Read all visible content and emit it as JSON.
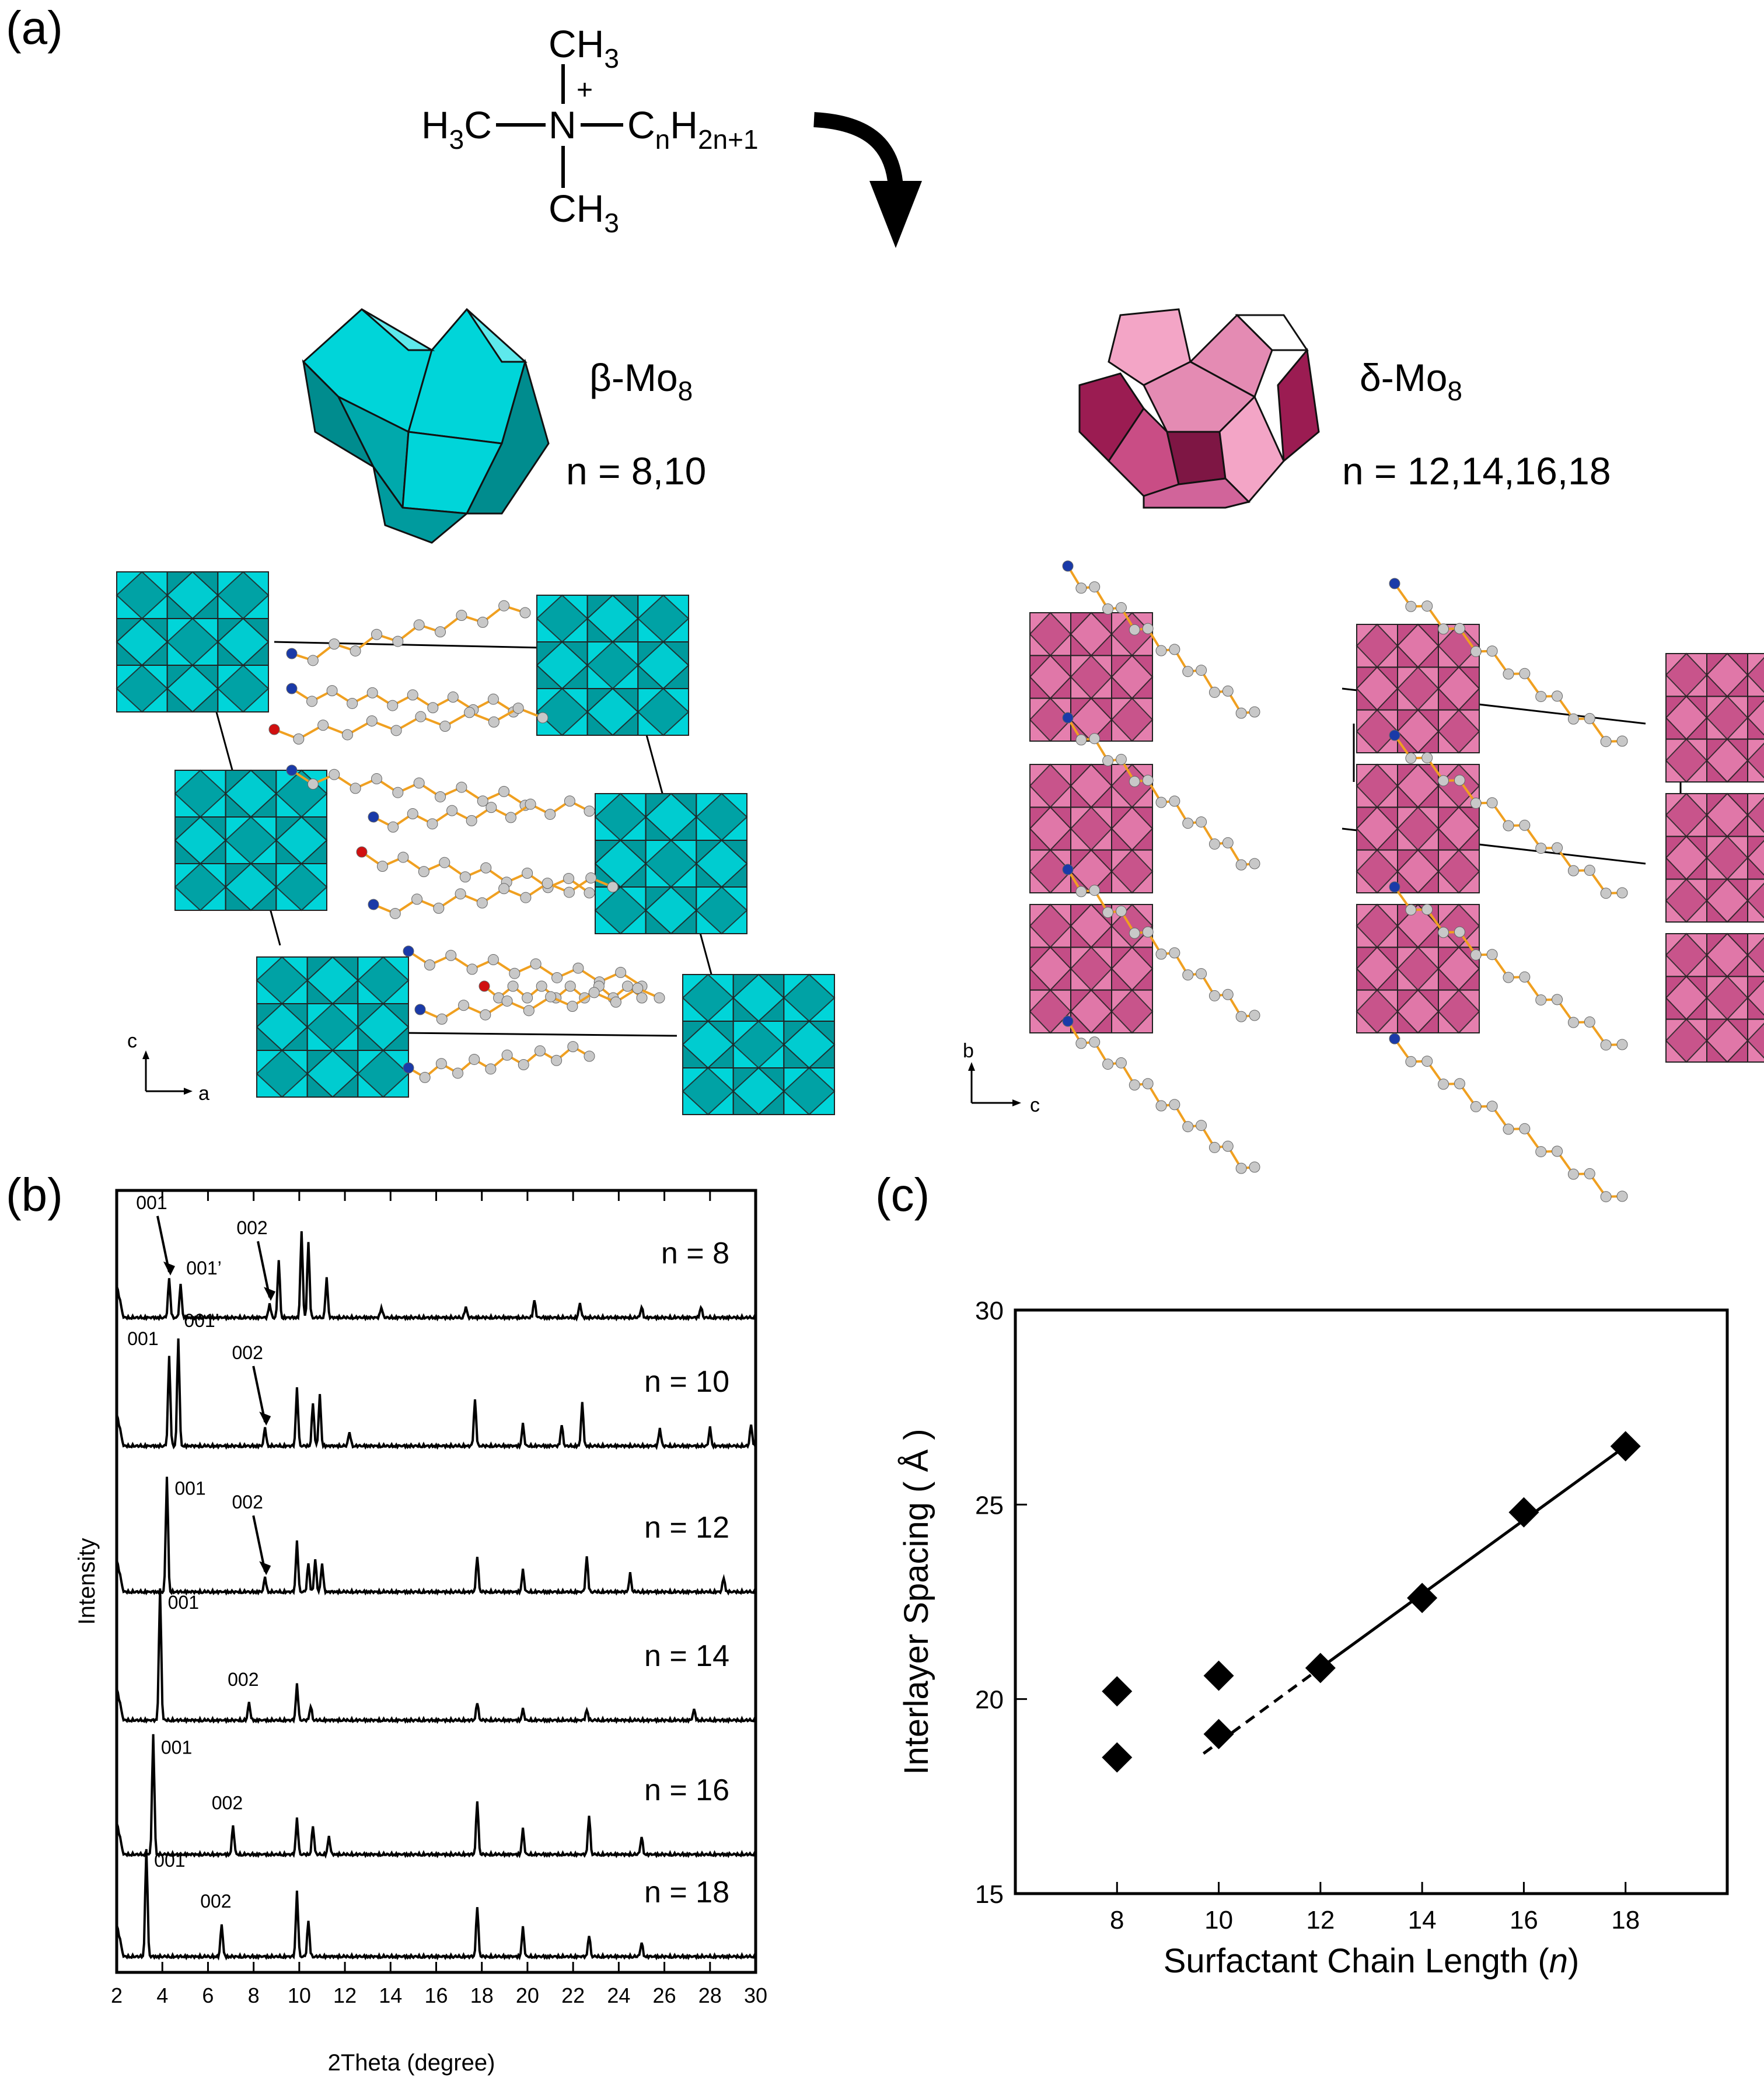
{
  "panel_labels": {
    "a": "(a)",
    "b": "(b)",
    "c": "(c)"
  },
  "formula": {
    "top": "CH",
    "top_sub": "3",
    "left": "H",
    "left_sub": "3",
    "left_after": "C",
    "center": "N",
    "charge": "+",
    "right": "C",
    "right_sub1": "n",
    "right_h": "H",
    "right_sub2": "2n+1",
    "bottom": "CH",
    "bottom_sub": "3"
  },
  "beta": {
    "label": "β-Mo",
    "label_sub": "8",
    "n_text": "n = 8,10",
    "color": "#00d5d9",
    "axes": {
      "vertical": "c",
      "horizontal": "a"
    }
  },
  "delta": {
    "label": "δ-Mo",
    "label_sub": "8",
    "n_text": "n = 12,14,16,18",
    "color": "#e57fae",
    "axes": {
      "vertical": "b",
      "horizontal": "c"
    }
  },
  "chart_data": [
    {
      "type": "line",
      "panel": "b",
      "xlabel": "2Theta (degree)",
      "ylabel": "Intensity",
      "xlim": [
        2,
        30
      ],
      "xticks": [
        2,
        4,
        6,
        8,
        10,
        12,
        14,
        16,
        18,
        20,
        22,
        24,
        26,
        28,
        30
      ],
      "series": [
        {
          "name": "n = 8",
          "peaks": [
            [
              4.3,
              1.1
            ],
            [
              4.8,
              0.9
            ],
            [
              8.7,
              0.4
            ],
            [
              9.1,
              1.6
            ],
            [
              10.1,
              2.4
            ],
            [
              10.4,
              2.1
            ],
            [
              11.2,
              1.1
            ],
            [
              13.6,
              0.3
            ],
            [
              17.3,
              0.3
            ],
            [
              20.3,
              0.5
            ],
            [
              22.3,
              0.4
            ],
            [
              25.0,
              0.3
            ],
            [
              27.6,
              0.3
            ]
          ],
          "annotations": [
            {
              "text": "001",
              "arrow": true,
              "x": 4.3
            },
            {
              "text": "001’",
              "arrow": false,
              "x": 4.8
            },
            {
              "text": "002",
              "arrow": true,
              "x": 8.7
            }
          ]
        },
        {
          "name": "n = 10",
          "peaks": [
            [
              4.3,
              2.5
            ],
            [
              4.7,
              3.0
            ],
            [
              8.5,
              0.5
            ],
            [
              9.9,
              1.6
            ],
            [
              10.6,
              1.2
            ],
            [
              10.9,
              1.4
            ],
            [
              12.2,
              0.4
            ],
            [
              17.7,
              1.3
            ],
            [
              19.8,
              0.6
            ],
            [
              21.5,
              0.6
            ],
            [
              22.4,
              1.2
            ],
            [
              25.8,
              0.5
            ],
            [
              28.0,
              0.5
            ],
            [
              29.8,
              0.6
            ]
          ],
          "annotations": [
            {
              "text": "001",
              "arrow": false,
              "x": 4.3
            },
            {
              "text": "001’",
              "arrow": false,
              "x": 4.7
            },
            {
              "text": "002",
              "arrow": true,
              "x": 8.5
            }
          ]
        },
        {
          "name": "n = 12",
          "peaks": [
            [
              4.2,
              3.2
            ],
            [
              8.5,
              0.4
            ],
            [
              9.9,
              1.4
            ],
            [
              10.4,
              0.8
            ],
            [
              10.7,
              0.9
            ],
            [
              11.0,
              0.8
            ],
            [
              17.8,
              1.0
            ],
            [
              19.8,
              0.6
            ],
            [
              22.6,
              1.0
            ],
            [
              24.5,
              0.5
            ],
            [
              28.6,
              0.4
            ]
          ],
          "annotations": [
            {
              "text": "001",
              "arrow": false,
              "x": 4.2
            },
            {
              "text": "002",
              "arrow": true,
              "x": 8.5
            }
          ]
        },
        {
          "name": "n = 14",
          "peaks": [
            [
              3.9,
              3.6
            ],
            [
              7.8,
              0.5
            ],
            [
              9.9,
              1.0
            ],
            [
              10.5,
              0.4
            ],
            [
              17.8,
              0.5
            ],
            [
              19.8,
              0.3
            ],
            [
              22.6,
              0.3
            ],
            [
              27.3,
              0.3
            ]
          ],
          "annotations": [
            {
              "text": "001",
              "arrow": false,
              "x": 3.9
            },
            {
              "text": "002",
              "arrow": false,
              "x": 7.8
            }
          ]
        },
        {
          "name": "n = 16",
          "peaks": [
            [
              3.6,
              3.3
            ],
            [
              7.1,
              0.8
            ],
            [
              9.9,
              1.0
            ],
            [
              10.6,
              0.8
            ],
            [
              11.3,
              0.5
            ],
            [
              17.8,
              1.5
            ],
            [
              19.8,
              0.7
            ],
            [
              22.7,
              1.1
            ],
            [
              25.0,
              0.5
            ]
          ],
          "annotations": [
            {
              "text": "001",
              "arrow": false,
              "x": 3.6
            },
            {
              "text": "002",
              "arrow": false,
              "x": 7.1
            }
          ]
        },
        {
          "name": "n = 18",
          "peaks": [
            [
              3.3,
              3.0
            ],
            [
              6.6,
              0.9
            ],
            [
              9.9,
              1.8
            ],
            [
              10.4,
              1.0
            ],
            [
              17.8,
              1.4
            ],
            [
              19.8,
              0.8
            ],
            [
              22.7,
              0.6
            ],
            [
              25.0,
              0.4
            ]
          ],
          "annotations": [
            {
              "text": "001",
              "arrow": false,
              "x": 3.3
            },
            {
              "text": "002",
              "arrow": false,
              "x": 6.6
            }
          ]
        }
      ]
    },
    {
      "type": "scatter",
      "panel": "c",
      "xlabel": "Surfactant Chain Length (",
      "xlabel_var": "n",
      "xlabel_end": ")",
      "ylabel": "Interlayer Spacing ( Å )",
      "xlim": [
        6,
        20
      ],
      "ylim": [
        15,
        30
      ],
      "xticks": [
        8,
        10,
        12,
        14,
        16,
        18
      ],
      "yticks": [
        15,
        20,
        25,
        30
      ],
      "grid": false,
      "points": [
        [
          8,
          20.2
        ],
        [
          8,
          18.5
        ],
        [
          10,
          20.6
        ],
        [
          10,
          19.1
        ],
        [
          12,
          20.8
        ],
        [
          14,
          22.6
        ],
        [
          16,
          24.8
        ],
        [
          18,
          26.5
        ]
      ],
      "fit_line": {
        "solid": [
          [
            12,
            20.8
          ],
          [
            18,
            26.5
          ]
        ],
        "dashed": [
          [
            9.7,
            18.6
          ],
          [
            12,
            20.8
          ]
        ]
      }
    }
  ]
}
